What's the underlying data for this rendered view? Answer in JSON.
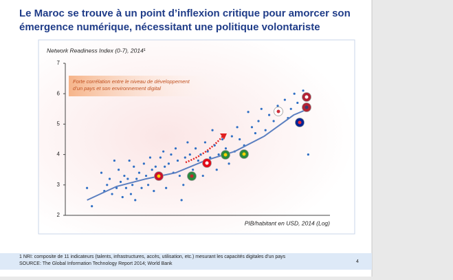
{
  "header": {
    "title_lines": [
      "Le Maroc se trouve à un point d’inflexion critique pour amorcer son",
      "émergence numérique, nécessitant une politique volontariste"
    ]
  },
  "chart_data": {
    "type": "scatter",
    "y_title": "Network Readiness Index (0-7), 2014¹",
    "x_title": "PIB/habitant en USD, 2014 (Log)",
    "annotation": [
      "Forte corrélation entre le niveau de développement",
      "d’un pays et son environnement digital"
    ],
    "x_log": true,
    "color": "#2f6fc4",
    "trend_color": "#5b7fc0",
    "xlim": [
      300,
      150000
    ],
    "ylim": [
      2,
      7
    ],
    "yticks": [
      2,
      3,
      4,
      5,
      6,
      7
    ],
    "x": [
      500,
      560,
      700,
      750,
      800,
      850,
      900,
      950,
      1000,
      1050,
      1100,
      1150,
      1200,
      1250,
      1300,
      1350,
      1400,
      1450,
      1500,
      1550,
      1600,
      1700,
      1800,
      1900,
      2000,
      2100,
      2200,
      2300,
      2400,
      2500,
      2600,
      2800,
      3000,
      3100,
      3200,
      3400,
      3600,
      3800,
      4000,
      4200,
      4400,
      4600,
      4800,
      5000,
      5300,
      5600,
      6000,
      6400,
      6800,
      7200,
      7600,
      8000,
      8500,
      9000,
      9500,
      10000,
      10500,
      11000,
      12000,
      13000,
      14000,
      15000,
      16000,
      17000,
      18000,
      20000,
      22000,
      24000,
      26000,
      28000,
      30000,
      33000,
      36000,
      40000,
      44000,
      48000,
      52000,
      56000,
      60000,
      65000,
      70000,
      80000,
      90000
    ],
    "values": [
      2.9,
      2.3,
      3.4,
      2.8,
      3.0,
      3.2,
      2.7,
      3.8,
      2.9,
      3.5,
      3.1,
      2.6,
      3.3,
      2.9,
      3.2,
      3.8,
      2.7,
      3.0,
      3.6,
      2.5,
      3.2,
      3.4,
      2.9,
      3.7,
      3.3,
      3.0,
      3.9,
      3.5,
      2.8,
      3.6,
      3.2,
      3.9,
      4.1,
      3.6,
      2.9,
      3.7,
      4.0,
      3.4,
      4.2,
      3.8,
      3.3,
      2.5,
      3.0,
      3.9,
      4.4,
      4.0,
      3.5,
      4.2,
      3.8,
      4.0,
      3.3,
      4.4,
      4.1,
      3.9,
      4.8,
      4.3,
      3.5,
      4.0,
      4.5,
      4.2,
      3.7,
      4.6,
      4.1,
      4.9,
      4.5,
      4.3,
      5.4,
      4.9,
      4.7,
      5.1,
      5.5,
      4.8,
      5.3,
      5.1,
      5.6,
      5.4,
      5.8,
      5.2,
      5.5,
      6.0,
      5.7,
      6.1,
      4.0
    ],
    "trend": {
      "x": [
        500,
        1000,
        2000,
        4000,
        8000,
        16000,
        32000,
        64000,
        90000
      ],
      "values": [
        2.5,
        2.95,
        3.2,
        3.4,
        3.8,
        4.1,
        4.6,
        5.3,
        5.5
      ]
    }
  },
  "footer": {
    "note": "1 NRI: composite de 11 indicateurs (talents, infrastructures, accès, utilisation, etc.) mesurant les capacités digitales d'un pays",
    "source": "SOURCE: The Global Information Technology Report 2014; World Bank",
    "page": "4"
  }
}
